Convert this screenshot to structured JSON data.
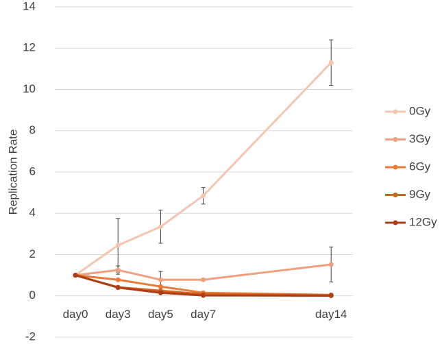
{
  "chart_data": {
    "type": "line",
    "y_label": "Replication Rate",
    "categories": [
      "day0",
      "day3",
      "day5",
      "day7",
      "day14"
    ],
    "series": [
      {
        "name": "0Gy",
        "color": "#f4c5b1",
        "values": [
          1,
          2.45,
          3.35,
          4.85,
          11.3
        ],
        "errors": [
          null,
          1.3,
          0.8,
          0.4,
          1.1
        ]
      },
      {
        "name": "3Gy",
        "color": "#f0a07e",
        "values": [
          1,
          1.25,
          0.78,
          0.78,
          1.52
        ],
        "errors": [
          null,
          0.2,
          0.4,
          null,
          0.85
        ]
      },
      {
        "name": "6Gy",
        "color": "#e97a3a",
        "values": [
          1,
          0.78,
          0.45,
          0.15,
          0.05
        ],
        "errors": [
          null,
          null,
          null,
          null,
          null
        ]
      },
      {
        "name": "9Gy",
        "color": "#d6601d",
        "values": [
          1,
          0.42,
          0.25,
          0.08,
          0.03
        ],
        "errors": [
          null,
          null,
          null,
          null,
          null
        ]
      },
      {
        "name": "12Gy",
        "color": "#ab3d17",
        "values": [
          1,
          0.4,
          0.15,
          0.02,
          0.01
        ],
        "errors": [
          null,
          null,
          null,
          null,
          null
        ]
      }
    ],
    "ylim": [
      -2,
      14
    ],
    "yticks": [
      -2,
      0,
      2,
      4,
      6,
      8,
      10,
      12,
      14
    ],
    "grid": true,
    "legend": "right"
  }
}
